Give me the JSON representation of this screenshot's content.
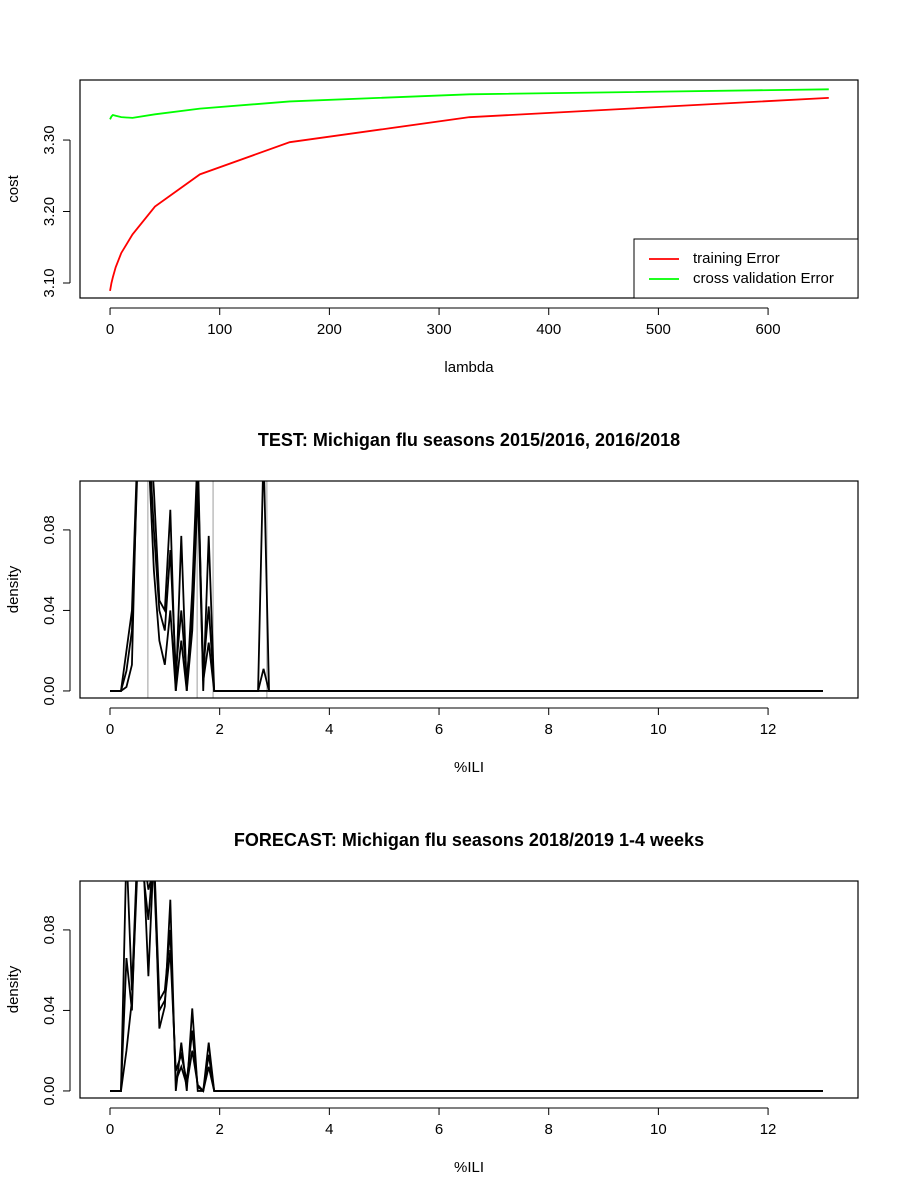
{
  "chart_data": [
    {
      "type": "line",
      "xlabel": "lambda",
      "ylabel": "cost",
      "x": [
        0,
        1.28,
        2.56,
        5.12,
        10.24,
        20.48,
        40.96,
        81.92,
        163.84,
        327.68,
        655.36
      ],
      "series": [
        {
          "name": "training Error",
          "color": "#ff0000",
          "values": [
            3.089,
            3.1,
            3.108,
            3.122,
            3.142,
            3.168,
            3.207,
            3.252,
            3.297,
            3.332,
            3.359
          ]
        },
        {
          "name": "cross validation Error",
          "color": "#00ff00",
          "values": [
            3.329,
            3.333,
            3.335,
            3.334,
            3.332,
            3.331,
            3.336,
            3.344,
            3.354,
            3.364,
            3.371
          ]
        }
      ],
      "xlim": [
        -27.4,
        682
      ],
      "ylim": [
        3.079,
        3.384
      ],
      "xticks": [
        0,
        100,
        200,
        300,
        400,
        500,
        600
      ],
      "yticks": [
        {
          "value": 3.1,
          "label": "3.10"
        },
        {
          "value": 3.2,
          "label": "3.20"
        },
        {
          "value": 3.3,
          "label": "3.30"
        }
      ],
      "legend": "bottomright"
    },
    {
      "type": "line",
      "title": "TEST: Michigan  flu seasons 2015/2016, 2016/2018",
      "xlabel": "%ILI",
      "ylabel": "density",
      "x": [
        0,
        0.1,
        0.2,
        0.3,
        0.4,
        0.5,
        0.6,
        0.7,
        0.8,
        0.9,
        1.0,
        1.1,
        1.2,
        1.3,
        1.4,
        1.5,
        1.6,
        1.7,
        1.8,
        1.9,
        2.0,
        2.1,
        2.2,
        2.3,
        2.4,
        2.5,
        2.6,
        2.7,
        2.8,
        2.9,
        3.0,
        13
      ],
      "series": [
        {
          "color": "#000000",
          "values": [
            0,
            0,
            0,
            0.02,
            0.04,
            0.12,
            0.15,
            0.14,
            0.1,
            0.045,
            0.04,
            0.09,
            0,
            0.077,
            0,
            0.05,
            0.12,
            0,
            0.077,
            0,
            0,
            0,
            0,
            0,
            0,
            0,
            0,
            0,
            0.12,
            0,
            0,
            0
          ]
        },
        {
          "color": "#000000",
          "values": [
            0,
            0,
            0,
            0.01,
            0.03,
            0.11,
            0.13,
            0.13,
            0.08,
            0.04,
            0.03,
            0.07,
            0.01,
            0.04,
            0.005,
            0.04,
            0.11,
            0.01,
            0.042,
            0,
            0,
            0,
            0,
            0,
            0,
            0,
            0,
            0,
            0.011,
            0,
            0,
            0
          ]
        },
        {
          "color": "#000000",
          "values": [
            0,
            0,
            0,
            0.002,
            0.013,
            0.12,
            0.14,
            0.12,
            0.06,
            0.025,
            0.013,
            0.04,
            0,
            0.025,
            0,
            0.03,
            0.1,
            0.005,
            0.024,
            0,
            0,
            0,
            0,
            0,
            0,
            0,
            0,
            0,
            0,
            0,
            0,
            0
          ]
        }
      ],
      "vlines": [
        0.69,
        1.59,
        1.88,
        2.86
      ],
      "vline_color": "#bebebe",
      "xlim": [
        -0.547,
        13.64
      ],
      "ylim": [
        -0.0035,
        0.1043
      ],
      "xticks": [
        0,
        2,
        4,
        6,
        8,
        10,
        12
      ],
      "yticks": [
        {
          "value": 0,
          "label": "0.00"
        },
        {
          "value": 0.04,
          "label": "0.04"
        },
        {
          "value": 0.08,
          "label": "0.08"
        }
      ]
    },
    {
      "type": "line",
      "title": "FORECAST: Michigan flu seasons 2018/2019 1-4 weeks",
      "xlabel": "%ILI",
      "ylabel": "density",
      "x": [
        0,
        0.1,
        0.2,
        0.3,
        0.4,
        0.5,
        0.6,
        0.7,
        0.8,
        0.9,
        1.0,
        1.1,
        1.2,
        1.3,
        1.4,
        1.5,
        1.6,
        1.7,
        1.8,
        1.9,
        2.0,
        13
      ],
      "series": [
        {
          "color": "#000000",
          "values": [
            0,
            0,
            0,
            0.12,
            0.05,
            0.12,
            0.12,
            0.057,
            0.12,
            0.031,
            0.042,
            0.095,
            0,
            0.024,
            0,
            0.041,
            0,
            0,
            0.024,
            0,
            0,
            0
          ]
        },
        {
          "color": "#000000",
          "values": [
            0,
            0,
            0,
            0.066,
            0.04,
            0.12,
            0.11,
            0.085,
            0.12,
            0.045,
            0.05,
            0.08,
            0.005,
            0.012,
            0.003,
            0.02,
            0.003,
            0,
            0.012,
            0,
            0,
            0
          ]
        },
        {
          "color": "#000000",
          "values": [
            0,
            0,
            0,
            0.02,
            0.045,
            0.11,
            0.12,
            0.1,
            0.11,
            0.04,
            0.045,
            0.07,
            0.01,
            0.018,
            0.005,
            0.03,
            0.002,
            0,
            0.018,
            0,
            0,
            0
          ]
        }
      ],
      "xlim": [
        -0.547,
        13.64
      ],
      "ylim": [
        -0.0035,
        0.1043
      ],
      "xticks": [
        0,
        2,
        4,
        6,
        8,
        10,
        12
      ],
      "yticks": [
        {
          "value": 0,
          "label": "0.00"
        },
        {
          "value": 0.04,
          "label": "0.04"
        },
        {
          "value": 0.08,
          "label": "0.08"
        }
      ]
    }
  ]
}
